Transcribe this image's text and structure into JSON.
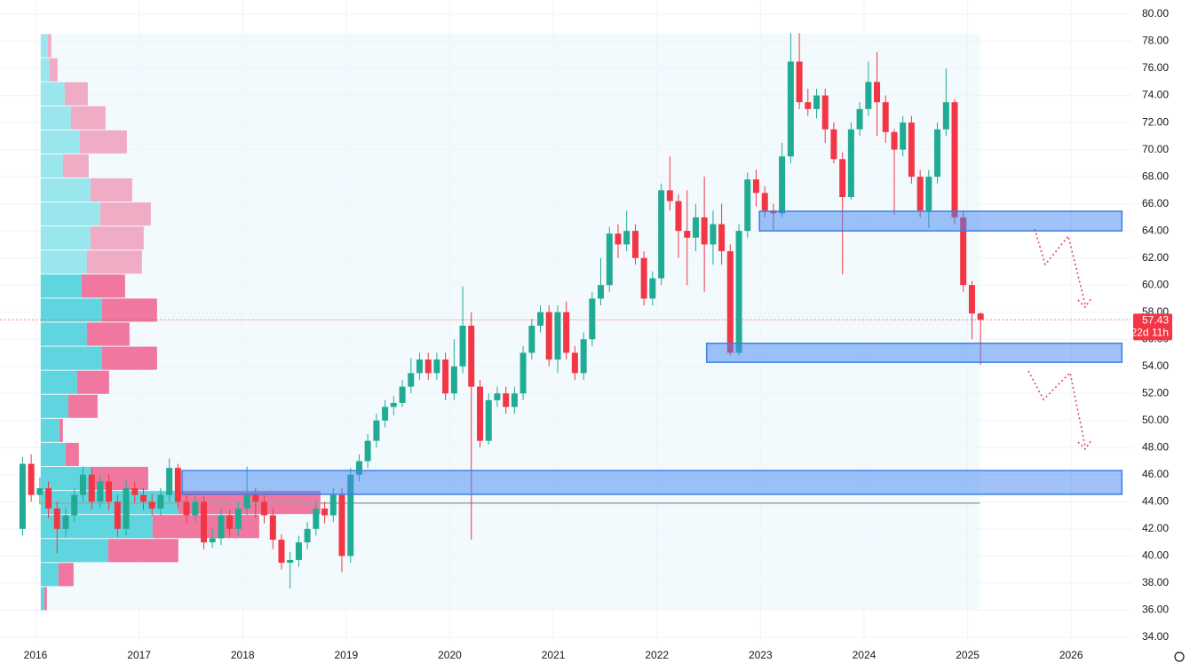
{
  "chart_data": {
    "type": "candlestick",
    "xlim": [
      2015.657,
      2026.59
    ],
    "ylim": [
      33.6,
      81.05
    ],
    "xticks": [
      2016,
      2017,
      2018,
      2019,
      2020,
      2021,
      2022,
      2023,
      2024,
      2025,
      2026
    ],
    "yticks": [
      {
        "value": 34,
        "label": "34.00"
      },
      {
        "value": 36,
        "label": "36.00"
      },
      {
        "value": 38,
        "label": "38.00"
      },
      {
        "value": 40,
        "label": "40.00"
      },
      {
        "value": 42,
        "label": "42.00"
      },
      {
        "value": 44,
        "label": "44.00"
      },
      {
        "value": 46,
        "label": "46.00"
      },
      {
        "value": 48,
        "label": "48.00"
      },
      {
        "value": 50,
        "label": "50.00"
      },
      {
        "value": 52,
        "label": "52.00"
      },
      {
        "value": 54,
        "label": "54.00"
      },
      {
        "value": 56,
        "label": "56.00"
      },
      {
        "value": 58,
        "label": "58.00"
      },
      {
        "value": 60,
        "label": "60.00"
      },
      {
        "value": 62,
        "label": "62.00"
      },
      {
        "value": 64,
        "label": "64.00"
      },
      {
        "value": 66,
        "label": "66.00"
      },
      {
        "value": 68,
        "label": "68.00"
      },
      {
        "value": 70,
        "label": "70.00"
      },
      {
        "value": 72,
        "label": "72.00"
      },
      {
        "value": 74,
        "label": "74.00"
      },
      {
        "value": 76,
        "label": "76.00"
      },
      {
        "value": 78,
        "label": "78.00"
      },
      {
        "value": 80,
        "label": "80.00"
      }
    ],
    "grid": true,
    "up_color": "#22ab94",
    "down_color": "#f23645",
    "x": [
      2015.875,
      2015.958,
      2016.042,
      2016.125,
      2016.208,
      2016.292,
      2016.375,
      2016.458,
      2016.542,
      2016.625,
      2016.708,
      2016.792,
      2016.875,
      2016.958,
      2017.042,
      2017.125,
      2017.208,
      2017.292,
      2017.375,
      2017.458,
      2017.542,
      2017.625,
      2017.708,
      2017.792,
      2017.875,
      2017.958,
      2018.042,
      2018.125,
      2018.208,
      2018.292,
      2018.375,
      2018.458,
      2018.542,
      2018.625,
      2018.708,
      2018.792,
      2018.875,
      2018.958,
      2019.042,
      2019.125,
      2019.208,
      2019.292,
      2019.375,
      2019.458,
      2019.542,
      2019.625,
      2019.708,
      2019.792,
      2019.875,
      2019.958,
      2020.042,
      2020.125,
      2020.208,
      2020.292,
      2020.375,
      2020.458,
      2020.542,
      2020.625,
      2020.708,
      2020.792,
      2020.875,
      2020.958,
      2021.042,
      2021.125,
      2021.208,
      2021.292,
      2021.375,
      2021.458,
      2021.542,
      2021.625,
      2021.708,
      2021.792,
      2021.875,
      2021.958,
      2022.042,
      2022.125,
      2022.208,
      2022.292,
      2022.375,
      2022.458,
      2022.542,
      2022.625,
      2022.708,
      2022.792,
      2022.875,
      2022.958,
      2023.042,
      2023.125,
      2023.208,
      2023.292,
      2023.375,
      2023.458,
      2023.542,
      2023.625,
      2023.708,
      2023.792,
      2023.875,
      2023.958,
      2024.042,
      2024.125,
      2024.208,
      2024.292,
      2024.375,
      2024.458,
      2024.542,
      2024.625,
      2024.708,
      2024.792,
      2024.875,
      2024.958,
      2025.042,
      2025.125
    ],
    "open": [
      42,
      46.8,
      44.5,
      45,
      43.5,
      42,
      43,
      44.5,
      46,
      44,
      45.5,
      44,
      42,
      45,
      44.5,
      44,
      43.5,
      44.5,
      46.5,
      44,
      43,
      44,
      41,
      41.3,
      43,
      42,
      43.5,
      44.5,
      44,
      43,
      41.2,
      39.5,
      39.7,
      41,
      42,
      43.5,
      43,
      44.5,
      40,
      46,
      47,
      48.5,
      50,
      51,
      51.3,
      52.5,
      53.5,
      54.5,
      53.5,
      54.5,
      52,
      54,
      57,
      52.5,
      48.5,
      51.5,
      52,
      51,
      52,
      55,
      57,
      58,
      54.5,
      58,
      55,
      53.5,
      56,
      59,
      60,
      63.8,
      63,
      64,
      62,
      59,
      60.5,
      67,
      66.2,
      64,
      63.5,
      65,
      63,
      64.5,
      62.5,
      55,
      64,
      67.8,
      66.8,
      65.5,
      65.3,
      69.5,
      76.5,
      73.5,
      73,
      74,
      71.5,
      69.3,
      66.5,
      71.5,
      73,
      75,
      73.5,
      71.3,
      70,
      72,
      68,
      65.5,
      68,
      71.5,
      73.5,
      65,
      60,
      57.9
    ],
    "high": [
      47.3,
      47.5,
      45.8,
      45.5,
      44,
      43.6,
      45,
      46.6,
      46.5,
      46,
      46,
      44.5,
      45.6,
      45.5,
      45,
      44.6,
      45,
      47.2,
      46.8,
      44.5,
      44.5,
      44.4,
      42,
      43.5,
      43.4,
      44,
      46.6,
      45,
      44.5,
      43.5,
      41.6,
      40.3,
      41.5,
      42.5,
      44,
      44,
      45,
      45,
      46.5,
      47.5,
      49,
      50.5,
      51.5,
      51.8,
      53,
      54.6,
      55,
      55,
      55,
      55,
      56,
      59.9,
      58,
      53,
      52,
      52.5,
      52.5,
      52.5,
      55.5,
      57.5,
      58.5,
      58.5,
      58.5,
      58.8,
      55.5,
      56.5,
      59.5,
      62,
      64.3,
      64.5,
      65.5,
      64.5,
      62.5,
      61,
      67.5,
      69.5,
      66.7,
      67,
      66,
      68,
      65.5,
      66,
      63,
      64.5,
      68.3,
      68.5,
      67.3,
      66,
      70.5,
      78.6,
      78.6,
      74.5,
      74.5,
      74.5,
      72,
      69.8,
      72,
      73.5,
      76.5,
      77.2,
      74,
      71.5,
      72.5,
      72.5,
      68.5,
      68.5,
      72,
      76,
      73.7,
      65.5,
      60.3,
      58
    ],
    "low": [
      41.5,
      44,
      43.8,
      42.8,
      40.2,
      41.4,
      42.5,
      44,
      43.4,
      43.5,
      43.4,
      41.4,
      41.5,
      43.9,
      43.4,
      43,
      43,
      44,
      43.5,
      42.4,
      42.5,
      40.5,
      40.6,
      40.8,
      41.4,
      41.5,
      43,
      42.8,
      42.4,
      40.5,
      39,
      37.6,
      39.2,
      40.5,
      41.5,
      42.4,
      42.5,
      38.8,
      39.5,
      45.5,
      46.5,
      48,
      49.5,
      50.4,
      51,
      52,
      53,
      53,
      53,
      51.5,
      51.5,
      53.5,
      41.2,
      48,
      48.2,
      51,
      50.5,
      50.5,
      51.5,
      54.5,
      56.5,
      54,
      53.5,
      54.5,
      53,
      53,
      55.5,
      58.5,
      59.5,
      62,
      62.5,
      61.5,
      58.5,
      58.5,
      60,
      65.5,
      62,
      60,
      62.5,
      59.5,
      61.5,
      61.5,
      54.8,
      54.8,
      63.5,
      65.8,
      65,
      64,
      65,
      69,
      73,
      72.5,
      72.3,
      70.5,
      69,
      60.8,
      66.3,
      71,
      72.5,
      71,
      70.5,
      65.2,
      69.5,
      67.5,
      65,
      64.2,
      67.5,
      71,
      64.5,
      59.5,
      56,
      54.1
    ],
    "close": [
      46.8,
      44.5,
      45,
      43.5,
      42,
      43,
      44.5,
      46,
      44,
      45.5,
      44,
      42,
      45,
      44.5,
      44,
      43.5,
      44.5,
      46.5,
      44,
      43,
      44,
      41,
      41.3,
      43,
      42,
      43.5,
      44.5,
      44,
      43,
      41.2,
      39.5,
      39.7,
      41,
      42,
      43.5,
      43,
      44.5,
      40,
      46,
      47,
      48.5,
      50,
      51,
      51.3,
      52.5,
      53.5,
      54.5,
      53.5,
      54.5,
      52,
      54,
      57,
      52.5,
      48.5,
      51.5,
      52,
      51,
      52,
      55,
      57,
      58,
      54.5,
      58,
      55,
      53.5,
      56,
      59,
      60,
      63.8,
      63,
      64,
      62,
      59,
      60.5,
      67,
      66.2,
      64,
      63.5,
      65,
      63,
      64.5,
      62.5,
      55,
      64,
      67.8,
      66.8,
      65.5,
      65.3,
      69.5,
      76.5,
      73.5,
      73,
      74,
      71.5,
      69.3,
      66.5,
      71.5,
      73,
      75,
      73.5,
      71.3,
      70,
      72,
      68,
      65.5,
      68,
      71.5,
      73.5,
      65,
      60,
      57.9,
      57.43
    ],
    "last_price": 57.43,
    "countdown": "22d 11h",
    "range_xlim": [
      2016.05,
      2025.12
    ],
    "profile_range": [
      35.96,
      78.56
    ],
    "profile_up": [
      4,
      20,
      76,
      126,
      155,
      57,
      28,
      21,
      31,
      41,
      69,
      52,
      69,
      46,
      52,
      56,
      67,
      56,
      25,
      44,
      34,
      27,
      10,
      8
    ],
    "profile_down": [
      3,
      17,
      79,
      120,
      160,
      64,
      15,
      4,
      33,
      36,
      62,
      48,
      62,
      49,
      62,
      60,
      57,
      47,
      29,
      53,
      39,
      26,
      9,
      4
    ],
    "profile_value_area": [
      0,
      13
    ],
    "poc_line": 43.9,
    "zones": [
      {
        "xlim": [
          2022.99,
          2026.49
        ],
        "ylim": [
          64.0,
          65.45
        ]
      },
      {
        "xlim": [
          2022.48,
          2026.49
        ],
        "ylim": [
          54.3,
          55.7
        ]
      },
      {
        "xlim": [
          2017.415,
          2026.49
        ],
        "ylim": [
          44.55,
          46.3
        ]
      }
    ]
  }
}
